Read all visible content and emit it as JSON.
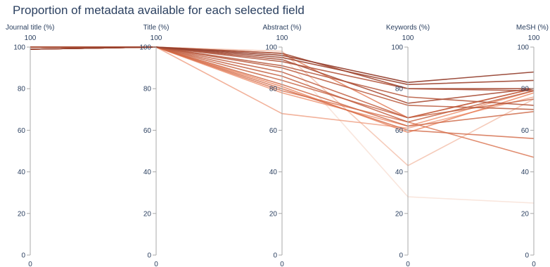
{
  "chart_data": {
    "type": "parallel-coordinates",
    "title": "Proportion of metadata available for each selected field",
    "dimensions": [
      "Journal title (%)",
      "Title (%)",
      "Abstract (%)",
      "Keywords (%)",
      "MeSH (%)"
    ],
    "range": [
      0,
      100
    ],
    "range_labels": {
      "min": "0",
      "max": "100"
    },
    "ticks": [
      "0",
      "20",
      "40",
      "60",
      "80",
      "100"
    ],
    "colorscale": {
      "low": "#f7e6dc",
      "mid": "#e8774e",
      "high": "#8c3a2a"
    },
    "series": [
      {
        "values": [
          99,
          100,
          96,
          83,
          88
        ],
        "shade": 0.95
      },
      {
        "values": [
          99,
          100,
          95,
          82,
          84
        ],
        "shade": 0.9
      },
      {
        "values": [
          100,
          100,
          97,
          80,
          80
        ],
        "shade": 0.88
      },
      {
        "values": [
          99,
          100,
          94,
          73,
          80
        ],
        "shade": 0.85
      },
      {
        "values": [
          100,
          100,
          93,
          80,
          79
        ],
        "shade": 0.8
      },
      {
        "values": [
          99,
          100,
          91,
          76,
          72
        ],
        "shade": 0.78
      },
      {
        "values": [
          100,
          100,
          90,
          72,
          70
        ],
        "shade": 0.75
      },
      {
        "values": [
          99,
          100,
          88,
          66,
          80
        ],
        "shade": 0.72
      },
      {
        "values": [
          100,
          100,
          86,
          64,
          79
        ],
        "shade": 0.7
      },
      {
        "values": [
          99,
          100,
          84,
          66,
          75
        ],
        "shade": 0.68
      },
      {
        "values": [
          100,
          100,
          82,
          62,
          69
        ],
        "shade": 0.65
      },
      {
        "values": [
          99,
          100,
          80,
          60,
          56
        ],
        "shade": 0.62
      },
      {
        "values": [
          100,
          100,
          79,
          64,
          47
        ],
        "shade": 0.58
      },
      {
        "values": [
          99,
          100,
          97,
          66,
          80
        ],
        "shade": 0.55
      },
      {
        "values": [
          100,
          100,
          81,
          59,
          78
        ],
        "shade": 0.5
      },
      {
        "values": [
          99,
          100,
          78,
          62,
          79
        ],
        "shade": 0.45
      },
      {
        "values": [
          100,
          100,
          68,
          61,
          76
        ],
        "shade": 0.38
      },
      {
        "values": [
          99,
          100,
          98,
          43,
          75
        ],
        "shade": 0.25
      },
      {
        "values": [
          100,
          100,
          96,
          28,
          25
        ],
        "shade": 0.08
      }
    ]
  }
}
